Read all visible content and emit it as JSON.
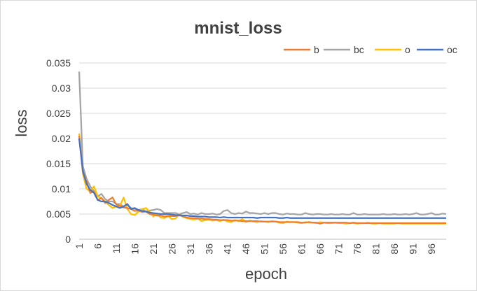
{
  "chart_data": {
    "type": "line",
    "title": "mnist_loss",
    "xlabel": "epoch",
    "ylabel": "loss",
    "ylim": [
      0,
      0.035
    ],
    "y_ticks": [
      "0",
      "0.005",
      "0.01",
      "0.015",
      "0.02",
      "0.025",
      "0.03",
      "0.035"
    ],
    "x_ticks": [
      "1",
      "6",
      "11",
      "16",
      "21",
      "26",
      "31",
      "36",
      "41",
      "46",
      "51",
      "56",
      "61",
      "66",
      "71",
      "76",
      "81",
      "86",
      "91",
      "96"
    ],
    "x_range": [
      1,
      100
    ],
    "grid": "horizontal",
    "legend_position": "top-right",
    "series": [
      {
        "name": "b",
        "color": "#ED7D31",
        "values": [
          0.0205,
          0.0135,
          0.0115,
          0.0092,
          0.0095,
          0.0078,
          0.0082,
          0.0072,
          0.0078,
          0.0083,
          0.0069,
          0.0066,
          0.0063,
          0.0062,
          0.006,
          0.0056,
          0.0057,
          0.0054,
          0.0055,
          0.005,
          0.0049,
          0.0047,
          0.0047,
          0.0045,
          0.0046,
          0.0046,
          0.0046,
          0.0047,
          0.0046,
          0.0043,
          0.0042,
          0.0042,
          0.0041,
          0.0041,
          0.004,
          0.004,
          0.0039,
          0.0039,
          0.0038,
          0.0038,
          0.0038,
          0.0037,
          0.0037,
          0.0037,
          0.0036,
          0.0036,
          0.0036,
          0.0036,
          0.0036,
          0.0035,
          0.0035,
          0.0035,
          0.0035,
          0.0035,
          0.0034,
          0.0034,
          0.0034,
          0.0034,
          0.0034,
          0.0034,
          0.0033,
          0.0033,
          0.0034,
          0.0033,
          0.0033,
          0.0031,
          0.0033,
          0.0033,
          0.0033,
          0.0033,
          0.0033,
          0.0033,
          0.0033,
          0.0032,
          0.0033,
          0.0032,
          0.0032,
          0.0032,
          0.0032,
          0.0032,
          0.0032,
          0.0032,
          0.0032,
          0.0032,
          0.0032,
          0.0032,
          0.0032,
          0.0032,
          0.0032,
          0.0032,
          0.0032,
          0.0032,
          0.0032,
          0.0032,
          0.0032,
          0.0032,
          0.0032,
          0.0032,
          0.0032,
          0.0032
        ]
      },
      {
        "name": "bc",
        "color": "#A5A5A5",
        "values": [
          0.0333,
          0.0145,
          0.012,
          0.0105,
          0.0095,
          0.0085,
          0.009,
          0.008,
          0.0075,
          0.0075,
          0.007,
          0.007,
          0.0065,
          0.0068,
          0.0062,
          0.006,
          0.0058,
          0.006,
          0.0055,
          0.0057,
          0.0058,
          0.006,
          0.0058,
          0.0052,
          0.0052,
          0.0052,
          0.0052,
          0.005,
          0.0052,
          0.0054,
          0.005,
          0.0051,
          0.0049,
          0.0052,
          0.005,
          0.005,
          0.0051,
          0.0049,
          0.005,
          0.0056,
          0.0058,
          0.0052,
          0.005,
          0.0052,
          0.0051,
          0.0055,
          0.0052,
          0.0052,
          0.0051,
          0.005,
          0.0052,
          0.005,
          0.0052,
          0.0052,
          0.005,
          0.0049,
          0.0051,
          0.005,
          0.005,
          0.0049,
          0.0049,
          0.0052,
          0.005,
          0.0049,
          0.005,
          0.005,
          0.0049,
          0.0049,
          0.005,
          0.0049,
          0.0049,
          0.005,
          0.0049,
          0.0049,
          0.0052,
          0.0049,
          0.0049,
          0.005,
          0.0049,
          0.0049,
          0.0049,
          0.0049,
          0.005,
          0.0049,
          0.0049,
          0.005,
          0.0049,
          0.0049,
          0.005,
          0.0049,
          0.005,
          0.0052,
          0.0049,
          0.0049,
          0.005,
          0.0052,
          0.0049,
          0.0049,
          0.0051,
          0.005
        ]
      },
      {
        "name": "o",
        "color": "#FFC000",
        "values": [
          0.021,
          0.013,
          0.01,
          0.0095,
          0.0105,
          0.0085,
          0.0082,
          0.0075,
          0.0068,
          0.0062,
          0.0065,
          0.0066,
          0.0083,
          0.006,
          0.005,
          0.0048,
          0.0055,
          0.006,
          0.0062,
          0.0055,
          0.0045,
          0.005,
          0.0043,
          0.0042,
          0.0046,
          0.004,
          0.0041,
          0.005,
          0.0044,
          0.0042,
          0.004,
          0.0039,
          0.0041,
          0.0036,
          0.0038,
          0.0039,
          0.0037,
          0.0038,
          0.0036,
          0.0039,
          0.0035,
          0.0034,
          0.0038,
          0.0036,
          0.004,
          0.0034,
          0.0037,
          0.0035,
          0.0034,
          0.0036,
          0.0035,
          0.0034,
          0.0036,
          0.0035,
          0.0033,
          0.0032,
          0.0035,
          0.0034,
          0.0034,
          0.0033,
          0.0032,
          0.0034,
          0.0033,
          0.0033,
          0.0032,
          0.0034,
          0.0033,
          0.0032,
          0.0032,
          0.0033,
          0.0032,
          0.0032,
          0.0031,
          0.0032,
          0.0032,
          0.0031,
          0.0032,
          0.0032,
          0.0033,
          0.0031,
          0.0031,
          0.0032,
          0.0031,
          0.0031,
          0.0031,
          0.0031,
          0.0032,
          0.0031,
          0.0031,
          0.0031,
          0.0031,
          0.0031,
          0.0031,
          0.0031,
          0.0031,
          0.0031,
          0.0031,
          0.0031,
          0.0031,
          0.0031
        ]
      },
      {
        "name": "oc",
        "color": "#4472C4",
        "values": [
          0.02,
          0.0135,
          0.011,
          0.0098,
          0.0092,
          0.0078,
          0.0075,
          0.0075,
          0.0072,
          0.0068,
          0.0065,
          0.0062,
          0.0065,
          0.007,
          0.006,
          0.0062,
          0.0058,
          0.0056,
          0.0055,
          0.0053,
          0.0052,
          0.0051,
          0.005,
          0.005,
          0.005,
          0.0049,
          0.0048,
          0.0048,
          0.0047,
          0.0047,
          0.0046,
          0.0046,
          0.0045,
          0.0045,
          0.0045,
          0.0044,
          0.0044,
          0.0044,
          0.0043,
          0.0044,
          0.0043,
          0.0043,
          0.0043,
          0.0043,
          0.0043,
          0.0043,
          0.0043,
          0.0043,
          0.0042,
          0.0043,
          0.0043,
          0.0043,
          0.0043,
          0.0043,
          0.0042,
          0.0042,
          0.0043,
          0.0042,
          0.0042,
          0.0042,
          0.0042,
          0.0042,
          0.0042,
          0.0042,
          0.0042,
          0.0042,
          0.0042,
          0.0042,
          0.0042,
          0.0042,
          0.0042,
          0.0042,
          0.0042,
          0.0042,
          0.0042,
          0.0042,
          0.0042,
          0.0042,
          0.0042,
          0.0042,
          0.0042,
          0.0042,
          0.0042,
          0.0042,
          0.0042,
          0.0042,
          0.0042,
          0.0042,
          0.0042,
          0.0042,
          0.0042,
          0.0042,
          0.0042,
          0.0042,
          0.0042,
          0.0042,
          0.0042,
          0.0042,
          0.0042,
          0.0042
        ]
      }
    ]
  }
}
